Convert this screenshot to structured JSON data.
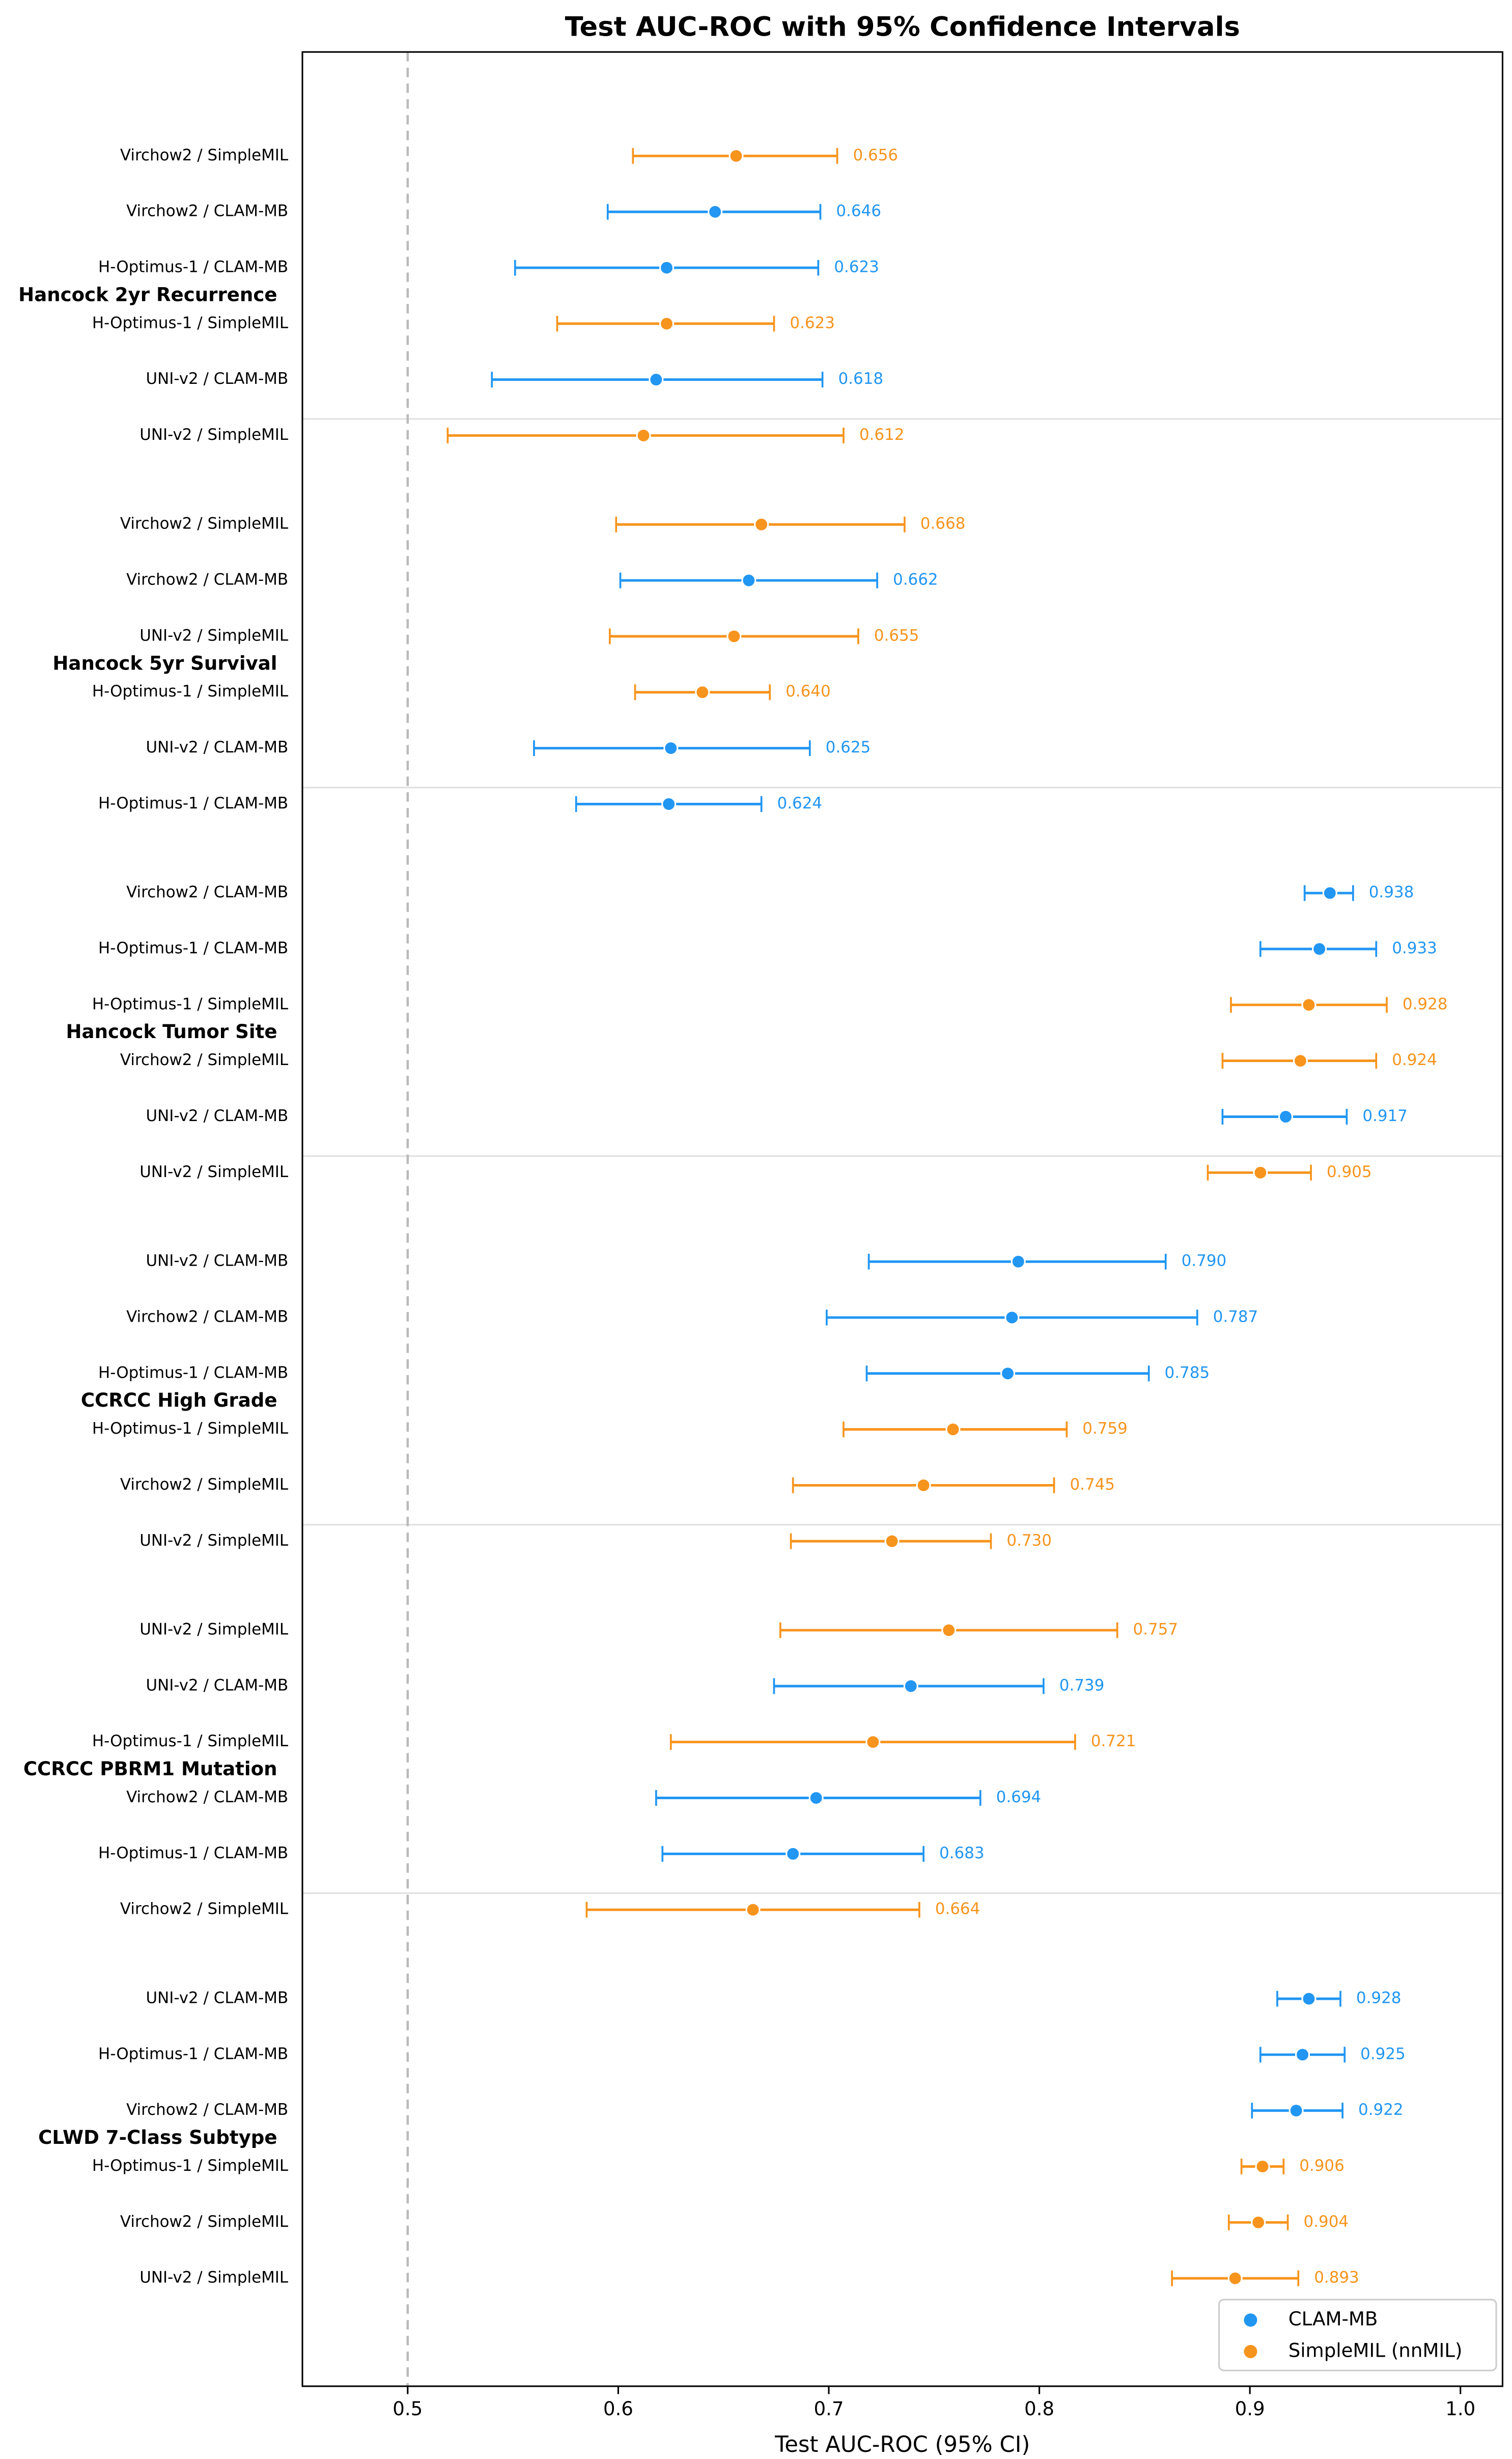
{
  "chart_data": {
    "type": "forest",
    "title": "Test AUC-ROC with 95% Confidence Intervals",
    "xlabel": "Test AUC-ROC (95% CI)",
    "xlim": [
      0.45,
      1.02
    ],
    "xticks": [
      0.5,
      0.6,
      0.7,
      0.8,
      0.9,
      {
        "value": 1.0,
        "label": "1.0"
      }
    ],
    "reference_line": 0.5,
    "legend": "lower right",
    "series": [
      {
        "name": "CLAM-MB",
        "color": "#2196f3"
      },
      {
        "name": "SimpleMIL (nnMIL)",
        "color": "#f7941d"
      }
    ],
    "groups": [
      {
        "name": "Hancock 2yr Recurrence",
        "rows": [
          {
            "label": "Virchow2 / SimpleMIL",
            "series": 1,
            "value": 0.656,
            "value_label": "0.656",
            "ci": [
              0.607,
              0.704
            ]
          },
          {
            "label": "Virchow2 / CLAM-MB",
            "series": 0,
            "value": 0.646,
            "value_label": "0.646",
            "ci": [
              0.595,
              0.696
            ]
          },
          {
            "label": "H-Optimus-1 / CLAM-MB",
            "series": 0,
            "value": 0.623,
            "value_label": "0.623",
            "ci": [
              0.551,
              0.695
            ]
          },
          {
            "label": "H-Optimus-1 / SimpleMIL",
            "series": 1,
            "value": 0.623,
            "value_label": "0.623",
            "ci": [
              0.571,
              0.674
            ]
          },
          {
            "label": "UNI-v2 / CLAM-MB",
            "series": 0,
            "value": 0.618,
            "value_label": "0.618",
            "ci": [
              0.54,
              0.697
            ]
          },
          {
            "label": "UNI-v2 / SimpleMIL",
            "series": 1,
            "value": 0.612,
            "value_label": "0.612",
            "ci": [
              0.519,
              0.707
            ]
          }
        ]
      },
      {
        "name": "Hancock 5yr Survival",
        "rows": [
          {
            "label": "Virchow2 / SimpleMIL",
            "series": 1,
            "value": 0.668,
            "value_label": "0.668",
            "ci": [
              0.599,
              0.736
            ]
          },
          {
            "label": "Virchow2 / CLAM-MB",
            "series": 0,
            "value": 0.662,
            "value_label": "0.662",
            "ci": [
              0.601,
              0.723
            ]
          },
          {
            "label": "UNI-v2 / SimpleMIL",
            "series": 1,
            "value": 0.655,
            "value_label": "0.655",
            "ci": [
              0.596,
              0.714
            ]
          },
          {
            "label": "H-Optimus-1 / SimpleMIL",
            "series": 1,
            "value": 0.64,
            "value_label": "0.640",
            "ci": [
              0.608,
              0.672
            ]
          },
          {
            "label": "UNI-v2 / CLAM-MB",
            "series": 0,
            "value": 0.625,
            "value_label": "0.625",
            "ci": [
              0.56,
              0.691
            ]
          },
          {
            "label": "H-Optimus-1 / CLAM-MB",
            "series": 0,
            "value": 0.624,
            "value_label": "0.624",
            "ci": [
              0.58,
              0.668
            ]
          }
        ]
      },
      {
        "name": "Hancock Tumor Site",
        "rows": [
          {
            "label": "Virchow2 / CLAM-MB",
            "series": 0,
            "value": 0.938,
            "value_label": "0.938",
            "ci": [
              0.926,
              0.949
            ]
          },
          {
            "label": "H-Optimus-1 / CLAM-MB",
            "series": 0,
            "value": 0.933,
            "value_label": "0.933",
            "ci": [
              0.905,
              0.96
            ]
          },
          {
            "label": "H-Optimus-1 / SimpleMIL",
            "series": 1,
            "value": 0.928,
            "value_label": "0.928",
            "ci": [
              0.891,
              0.965
            ]
          },
          {
            "label": "Virchow2 / SimpleMIL",
            "series": 1,
            "value": 0.924,
            "value_label": "0.924",
            "ci": [
              0.887,
              0.96
            ]
          },
          {
            "label": "UNI-v2 / CLAM-MB",
            "series": 0,
            "value": 0.917,
            "value_label": "0.917",
            "ci": [
              0.887,
              0.946
            ]
          },
          {
            "label": "UNI-v2 / SimpleMIL",
            "series": 1,
            "value": 0.905,
            "value_label": "0.905",
            "ci": [
              0.88,
              0.929
            ]
          }
        ]
      },
      {
        "name": "CCRCC High Grade",
        "rows": [
          {
            "label": "UNI-v2 / CLAM-MB",
            "series": 0,
            "value": 0.79,
            "value_label": "0.790",
            "ci": [
              0.719,
              0.86
            ]
          },
          {
            "label": "Virchow2 / CLAM-MB",
            "series": 0,
            "value": 0.787,
            "value_label": "0.787",
            "ci": [
              0.699,
              0.875
            ]
          },
          {
            "label": "H-Optimus-1 / CLAM-MB",
            "series": 0,
            "value": 0.785,
            "value_label": "0.785",
            "ci": [
              0.718,
              0.852
            ]
          },
          {
            "label": "H-Optimus-1 / SimpleMIL",
            "series": 1,
            "value": 0.759,
            "value_label": "0.759",
            "ci": [
              0.707,
              0.813
            ]
          },
          {
            "label": "Virchow2 / SimpleMIL",
            "series": 1,
            "value": 0.745,
            "value_label": "0.745",
            "ci": [
              0.683,
              0.807
            ]
          },
          {
            "label": "UNI-v2 / SimpleMIL",
            "series": 1,
            "value": 0.73,
            "value_label": "0.730",
            "ci": [
              0.682,
              0.777
            ]
          }
        ]
      },
      {
        "name": "CCRCC PBRM1 Mutation",
        "rows": [
          {
            "label": "UNI-v2 / SimpleMIL",
            "series": 1,
            "value": 0.757,
            "value_label": "0.757",
            "ci": [
              0.677,
              0.837
            ]
          },
          {
            "label": "UNI-v2 / CLAM-MB",
            "series": 0,
            "value": 0.739,
            "value_label": "0.739",
            "ci": [
              0.674,
              0.802
            ]
          },
          {
            "label": "H-Optimus-1 / SimpleMIL",
            "series": 1,
            "value": 0.721,
            "value_label": "0.721",
            "ci": [
              0.625,
              0.817
            ]
          },
          {
            "label": "Virchow2 / CLAM-MB",
            "series": 0,
            "value": 0.694,
            "value_label": "0.694",
            "ci": [
              0.618,
              0.772
            ]
          },
          {
            "label": "H-Optimus-1 / CLAM-MB",
            "series": 0,
            "value": 0.683,
            "value_label": "0.683",
            "ci": [
              0.621,
              0.745
            ]
          },
          {
            "label": "Virchow2 / SimpleMIL",
            "series": 1,
            "value": 0.664,
            "value_label": "0.664",
            "ci": [
              0.585,
              0.743
            ]
          }
        ]
      },
      {
        "name": "CLWD 7-Class Subtype",
        "rows": [
          {
            "label": "UNI-v2 / CLAM-MB",
            "series": 0,
            "value": 0.928,
            "value_label": "0.928",
            "ci": [
              0.913,
              0.943
            ]
          },
          {
            "label": "H-Optimus-1 / CLAM-MB",
            "series": 0,
            "value": 0.925,
            "value_label": "0.925",
            "ci": [
              0.905,
              0.945
            ]
          },
          {
            "label": "Virchow2 / CLAM-MB",
            "series": 0,
            "value": 0.922,
            "value_label": "0.922",
            "ci": [
              0.901,
              0.944
            ]
          },
          {
            "label": "H-Optimus-1 / SimpleMIL",
            "series": 1,
            "value": 0.906,
            "value_label": "0.906",
            "ci": [
              0.896,
              0.916
            ]
          },
          {
            "label": "Virchow2 / SimpleMIL",
            "series": 1,
            "value": 0.904,
            "value_label": "0.904",
            "ci": [
              0.89,
              0.918
            ]
          },
          {
            "label": "UNI-v2 / SimpleMIL",
            "series": 1,
            "value": 0.893,
            "value_label": "0.893",
            "ci": [
              0.863,
              0.923
            ]
          }
        ]
      }
    ]
  }
}
